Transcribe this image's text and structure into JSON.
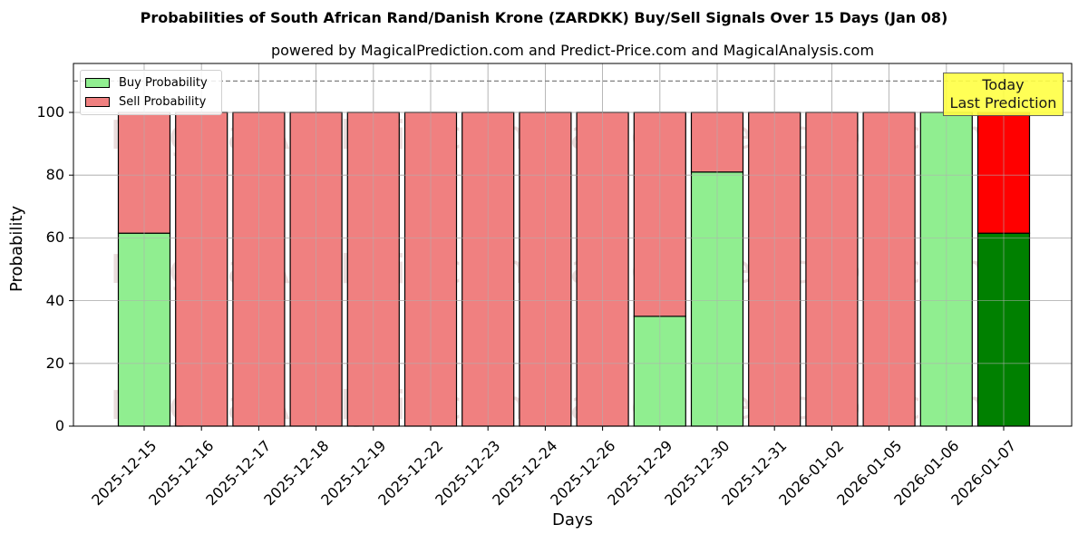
{
  "chart_data": {
    "type": "bar",
    "stacked": true,
    "title": "Probabilities of South African Rand/Danish Krone (ZARDKK) Buy/Sell Signals Over 15 Days (Jan 08)",
    "subtitle": "powered by MagicalPrediction.com and Predict-Price.com and MagicalAnalysis.com",
    "xlabel": "Days",
    "ylabel": "Probability",
    "ylim": [
      0,
      115.6
    ],
    "yticks": [
      0,
      20,
      40,
      60,
      80,
      100
    ],
    "grid": true,
    "legend_position": "upper left",
    "reference_line": {
      "y": 110,
      "style": "dashed",
      "color": "#808080"
    },
    "categories": [
      "2025-12-15",
      "2025-12-16",
      "2025-12-17",
      "2025-12-18",
      "2025-12-19",
      "2025-12-22",
      "2025-12-23",
      "2025-12-24",
      "2025-12-26",
      "2025-12-29",
      "2025-12-30",
      "2025-12-31",
      "2026-01-02",
      "2026-01-05",
      "2026-01-06",
      "2026-01-07"
    ],
    "series": [
      {
        "name": "Buy Probability",
        "color": "#90ee90",
        "values": [
          61.5,
          0,
          0,
          0,
          0,
          0,
          0,
          0,
          0,
          35.0,
          81.0,
          0,
          0,
          0,
          100,
          61.5
        ]
      },
      {
        "name": "Sell Probability",
        "color": "#f08080",
        "values": [
          38.5,
          100,
          100,
          100,
          100,
          100,
          100,
          100,
          100,
          65.0,
          19.0,
          100,
          100,
          100,
          0,
          38.5
        ]
      }
    ],
    "highlight": {
      "category": "2026-01-07",
      "buy_color": "#008000",
      "sell_color": "#ff0000"
    },
    "annotation": {
      "text": "Today\nLast Prediction",
      "line1": "Today",
      "line2": "Last Prediction",
      "background": "#ffff44"
    },
    "watermarks": [
      "MagicalAnalysis.com",
      "MagicalPrediction.com"
    ]
  },
  "legend": {
    "buy_label": "Buy Probability",
    "sell_label": "Sell Probability",
    "buy_color": "#90ee90",
    "sell_color": "#f08080"
  }
}
